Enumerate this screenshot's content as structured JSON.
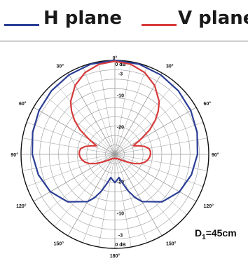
{
  "colors": {
    "h_plane": "#2b3e96",
    "v_plane": "#d83a3a",
    "grid": "#9a9a9a",
    "outer": "#111111"
  },
  "legend": {
    "h_label": "H plane",
    "v_label": "V plane"
  },
  "distance_label": {
    "prefix": "D",
    "sub": "1",
    "suffix": "=45cm"
  },
  "chart_data": {
    "type": "polar",
    "angle_unit": "deg",
    "radial_unit": "dB",
    "radial_range": [
      -30,
      0
    ],
    "angle_labels": [
      "0°",
      "30°",
      "60°",
      "90°",
      "120°",
      "150°",
      "180°",
      "150°",
      "120°",
      "90°",
      "60°",
      "30°"
    ],
    "radial_ticks_top": [
      "0 dB",
      "-3",
      "-10",
      "-20"
    ],
    "radial_ticks_bottom": [
      "-20",
      "-10",
      "-3",
      "0 dB"
    ],
    "series": [
      {
        "name": "H plane",
        "color": "#2b3e96",
        "theta": [
          0,
          15,
          30,
          45,
          60,
          75,
          90,
          105,
          120,
          135,
          150,
          155,
          160,
          165,
          170,
          175,
          180
        ],
        "r": [
          0,
          -0.2,
          -0.7,
          -1.3,
          -2.0,
          -2.8,
          -3.6,
          -4.7,
          -6.2,
          -8.6,
          -12.6,
          -14.8,
          -17.6,
          -20.5,
          -22.5,
          -21.8,
          -21.0
        ]
      },
      {
        "name": "V plane",
        "color": "#d83a3a",
        "theta": [
          0,
          10,
          20,
          30,
          40,
          45,
          50,
          55,
          60,
          65,
          70,
          75,
          80,
          85,
          90,
          95,
          100,
          105,
          110,
          115,
          120,
          130,
          140,
          150,
          160,
          170,
          180
        ],
        "r": [
          -0.3,
          -0.8,
          -2.2,
          -4.6,
          -8.0,
          -10.4,
          -13.2,
          -16.5,
          -20.5,
          -23.5,
          -22.0,
          -20.2,
          -19.0,
          -18.6,
          -18.6,
          -18.9,
          -19.4,
          -20.2,
          -21.4,
          -23.0,
          -24.8,
          -27.0,
          -28.0,
          -28.5,
          -28.5,
          -28.6,
          -28.8
        ]
      }
    ]
  }
}
